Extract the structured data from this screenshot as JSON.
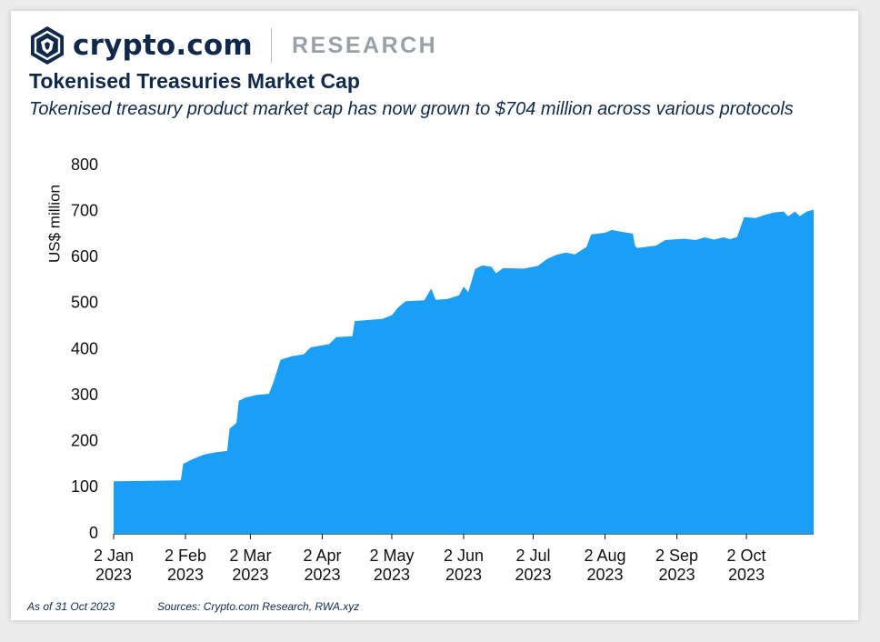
{
  "header": {
    "brand_name": "crypto.com",
    "section": "RESEARCH",
    "logo_icon": "crypto-com-lion-shield-icon",
    "brand_color": "#10294b"
  },
  "title": "Tokenised Treasuries Market Cap",
  "subtitle": "Tokenised treasury product market cap has now grown to $704 million across various protocols",
  "footer": {
    "as_of": "As of 31 Oct 2023",
    "sources": "Sources: Crypto.com Research, RWA.xyz"
  },
  "chart_data": {
    "type": "area",
    "title": "",
    "xlabel": "",
    "ylabel": "US$ million",
    "ylim": [
      0,
      800
    ],
    "xlim": [
      "2023-01-02",
      "2023-10-31"
    ],
    "yticks": [
      0,
      100,
      200,
      300,
      400,
      500,
      600,
      700,
      800
    ],
    "xticks": [
      {
        "date": "2023-01-02",
        "label": [
          "2 Jan",
          "2023"
        ]
      },
      {
        "date": "2023-02-02",
        "label": [
          "2 Feb",
          "2023"
        ]
      },
      {
        "date": "2023-03-02",
        "label": [
          "2 Mar",
          "2023"
        ]
      },
      {
        "date": "2023-04-02",
        "label": [
          "2 Apr",
          "2023"
        ]
      },
      {
        "date": "2023-05-02",
        "label": [
          "2 May",
          "2023"
        ]
      },
      {
        "date": "2023-06-02",
        "label": [
          "2 Jun",
          "2023"
        ]
      },
      {
        "date": "2023-07-02",
        "label": [
          "2 Jul",
          "2023"
        ]
      },
      {
        "date": "2023-08-02",
        "label": [
          "2 Aug",
          "2023"
        ]
      },
      {
        "date": "2023-09-02",
        "label": [
          "2 Sep",
          "2023"
        ]
      },
      {
        "date": "2023-10-02",
        "label": [
          "2 Oct",
          "2023"
        ]
      }
    ],
    "grid": false,
    "legend": "none",
    "series_color": "#1a9ff6",
    "points": [
      {
        "date": "2023-01-02",
        "value": 114
      },
      {
        "date": "2023-01-31",
        "value": 116
      },
      {
        "date": "2023-02-01",
        "value": 152
      },
      {
        "date": "2023-02-05",
        "value": 162
      },
      {
        "date": "2023-02-10",
        "value": 172
      },
      {
        "date": "2023-02-15",
        "value": 177
      },
      {
        "date": "2023-02-20",
        "value": 180
      },
      {
        "date": "2023-02-21",
        "value": 228
      },
      {
        "date": "2023-02-24",
        "value": 241
      },
      {
        "date": "2023-02-25",
        "value": 289
      },
      {
        "date": "2023-02-28",
        "value": 296
      },
      {
        "date": "2023-03-05",
        "value": 302
      },
      {
        "date": "2023-03-10",
        "value": 304
      },
      {
        "date": "2023-03-12",
        "value": 330
      },
      {
        "date": "2023-03-15",
        "value": 378
      },
      {
        "date": "2023-03-20",
        "value": 386
      },
      {
        "date": "2023-03-25",
        "value": 390
      },
      {
        "date": "2023-03-28",
        "value": 405
      },
      {
        "date": "2023-04-05",
        "value": 412
      },
      {
        "date": "2023-04-08",
        "value": 427
      },
      {
        "date": "2023-04-15",
        "value": 429
      },
      {
        "date": "2023-04-16",
        "value": 462
      },
      {
        "date": "2023-04-28",
        "value": 467
      },
      {
        "date": "2023-05-02",
        "value": 475
      },
      {
        "date": "2023-05-05",
        "value": 493
      },
      {
        "date": "2023-05-08",
        "value": 505
      },
      {
        "date": "2023-05-16",
        "value": 507
      },
      {
        "date": "2023-05-19",
        "value": 533
      },
      {
        "date": "2023-05-21",
        "value": 508
      },
      {
        "date": "2023-05-26",
        "value": 510
      },
      {
        "date": "2023-05-31",
        "value": 518
      },
      {
        "date": "2023-06-02",
        "value": 537
      },
      {
        "date": "2023-06-04",
        "value": 525
      },
      {
        "date": "2023-06-07",
        "value": 575
      },
      {
        "date": "2023-06-10",
        "value": 583
      },
      {
        "date": "2023-06-14",
        "value": 580
      },
      {
        "date": "2023-06-16",
        "value": 566
      },
      {
        "date": "2023-06-19",
        "value": 577
      },
      {
        "date": "2023-06-28",
        "value": 576
      },
      {
        "date": "2023-07-04",
        "value": 582
      },
      {
        "date": "2023-07-08",
        "value": 597
      },
      {
        "date": "2023-07-12",
        "value": 606
      },
      {
        "date": "2023-07-16",
        "value": 611
      },
      {
        "date": "2023-07-20",
        "value": 607
      },
      {
        "date": "2023-07-25",
        "value": 623
      },
      {
        "date": "2023-07-27",
        "value": 650
      },
      {
        "date": "2023-08-02",
        "value": 654
      },
      {
        "date": "2023-08-05",
        "value": 660
      },
      {
        "date": "2023-08-09",
        "value": 656
      },
      {
        "date": "2023-08-14",
        "value": 652
      },
      {
        "date": "2023-08-15",
        "value": 625
      },
      {
        "date": "2023-08-16",
        "value": 621
      },
      {
        "date": "2023-08-24",
        "value": 626
      },
      {
        "date": "2023-08-28",
        "value": 638
      },
      {
        "date": "2023-09-05",
        "value": 641
      },
      {
        "date": "2023-09-10",
        "value": 638
      },
      {
        "date": "2023-09-14",
        "value": 644
      },
      {
        "date": "2023-09-18",
        "value": 639
      },
      {
        "date": "2023-09-22",
        "value": 644
      },
      {
        "date": "2023-09-25",
        "value": 640
      },
      {
        "date": "2023-09-28",
        "value": 645
      },
      {
        "date": "2023-10-01",
        "value": 688
      },
      {
        "date": "2023-10-06",
        "value": 686
      },
      {
        "date": "2023-10-10",
        "value": 693
      },
      {
        "date": "2023-10-14",
        "value": 698
      },
      {
        "date": "2023-10-18",
        "value": 700
      },
      {
        "date": "2023-10-20",
        "value": 690
      },
      {
        "date": "2023-10-23",
        "value": 700
      },
      {
        "date": "2023-10-25",
        "value": 690
      },
      {
        "date": "2023-10-28",
        "value": 700
      },
      {
        "date": "2023-10-31",
        "value": 704
      }
    ]
  }
}
